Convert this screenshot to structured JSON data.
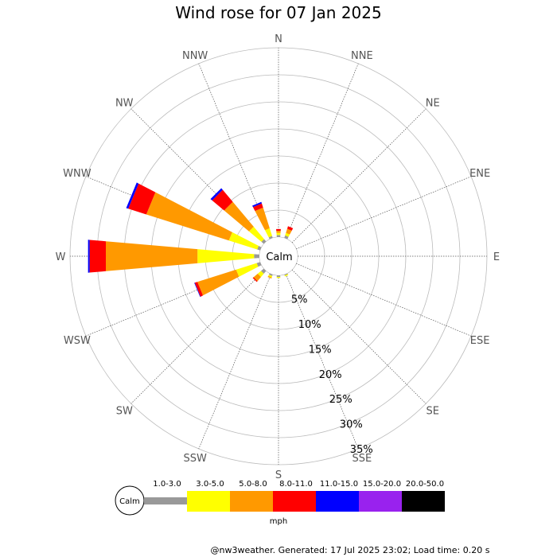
{
  "chart_data": {
    "type": "wind-rose",
    "title": "Wind rose for 07 Jan 2025",
    "directions": [
      "N",
      "NNE",
      "NE",
      "ENE",
      "E",
      "ESE",
      "SE",
      "SSE",
      "S",
      "SSW",
      "SW",
      "WSW",
      "W",
      "WNW",
      "NW",
      "NNW"
    ],
    "radial_ticks": [
      "5%",
      "10%",
      "15%",
      "20%",
      "25%",
      "30%",
      "35%"
    ],
    "radial_range": [
      0,
      35
    ],
    "center_label": "Calm",
    "speed_bins": [
      {
        "label": "1.0-3.0",
        "color": "#999999"
      },
      {
        "label": "3.0-5.0",
        "color": "#ffff00"
      },
      {
        "label": "5.0-8.0",
        "color": "#ff9900"
      },
      {
        "label": "8.0-11.0",
        "color": "#ff0000"
      },
      {
        "label": "11.0-15.0",
        "color": "#0000ff"
      },
      {
        "label": "15.0-20.0",
        "color": "#9922ee"
      },
      {
        "label": "20.0-50.0",
        "color": "#000000"
      }
    ],
    "unit": "mph",
    "series": [
      {
        "direction": "NNW",
        "values": [
          0.4,
          1.5,
          4.0,
          0.8,
          0.3,
          0,
          0
        ]
      },
      {
        "direction": "NW",
        "values": [
          0.6,
          3.0,
          6.0,
          2.9,
          0.4,
          0,
          0
        ]
      },
      {
        "direction": "WNW",
        "values": [
          0.6,
          5.5,
          16.0,
          3.5,
          0.4,
          0,
          0
        ]
      },
      {
        "direction": "W",
        "values": [
          1.0,
          10.5,
          17.0,
          3.0,
          0.3,
          0,
          0
        ]
      },
      {
        "direction": "WSW",
        "values": [
          0.7,
          4.0,
          7.5,
          0.5,
          0.1,
          0,
          0
        ]
      },
      {
        "direction": "SW",
        "values": [
          0.7,
          0.8,
          1.0,
          0.2,
          0,
          0,
          0
        ]
      },
      {
        "direction": "SSW",
        "values": [
          0.3,
          0.3,
          0.2,
          0,
          0,
          0,
          0
        ]
      },
      {
        "direction": "S",
        "values": [
          0.3,
          0.2,
          0,
          0,
          0,
          0,
          0
        ]
      },
      {
        "direction": "SSE",
        "values": [
          0.2,
          0.2,
          0,
          0,
          0,
          0,
          0
        ]
      },
      {
        "direction": "N",
        "values": [
          0.4,
          0.4,
          0.4,
          0.3,
          0,
          0,
          0
        ]
      },
      {
        "direction": "NNE",
        "values": [
          0.5,
          0.5,
          0.8,
          0.5,
          0,
          0,
          0
        ]
      }
    ]
  },
  "footer": "@nw3weather. Generated: 17 Jul 2025 23:02; Load time: 0.20 s"
}
